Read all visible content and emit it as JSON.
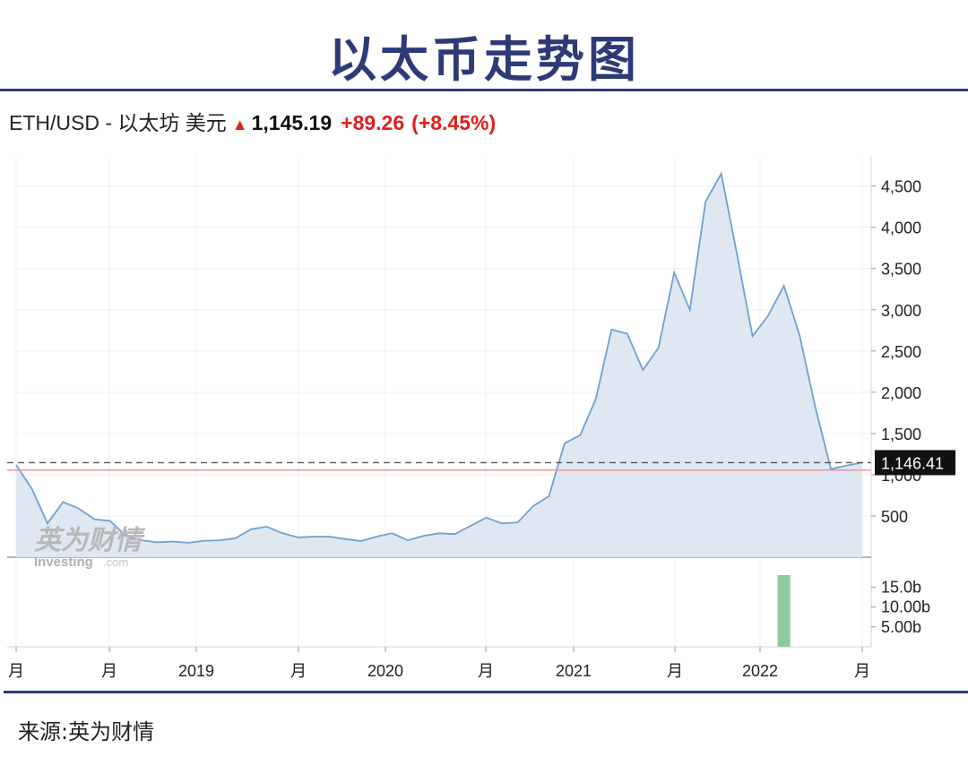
{
  "title": "以太币走势图",
  "quote": {
    "pair": "ETH/USD - 以太坊 美元",
    "arrow": "▲",
    "price": "1,145.19",
    "change": "+89.26",
    "change_pct": "(+8.45%)"
  },
  "source": "来源:英为财情",
  "watermark": {
    "cn": "英为财情",
    "en": "Investing",
    "en_suffix": ".com"
  },
  "colors": {
    "title": "#2e3a78",
    "line": "#6fa0d0",
    "area": "#dfe8f2",
    "ref_line": "#f08080",
    "volume": "#8ccb9b",
    "up": "#e0201b"
  },
  "chart_data": {
    "type": "area",
    "x_tick_labels": [
      "月",
      "月",
      "2019",
      "月",
      "2020",
      "月",
      "2021",
      "月",
      "2022",
      "月"
    ],
    "y_ticks": [
      500,
      1000,
      1500,
      2000,
      2500,
      3000,
      3500,
      4000,
      4500
    ],
    "y_tick_labels": [
      "500",
      "1,000",
      "1,500",
      "2,000",
      "2,500",
      "3,000",
      "3,500",
      "4,000",
      "4,500"
    ],
    "ylim": [
      0,
      4800
    ],
    "last_value_label": "1,146.41",
    "last_value": 1146.41,
    "reference_value": 1056,
    "series": [
      {
        "values": [
          1120,
          830,
          410,
          670,
          590,
          460,
          440,
          260,
          205,
          180,
          190,
          175,
          200,
          205,
          230,
          340,
          370,
          290,
          240,
          250,
          250,
          220,
          195,
          250,
          290,
          205,
          260,
          290,
          280,
          380,
          480,
          410,
          420,
          620,
          740,
          1380,
          1480,
          1920,
          2760,
          2710,
          2270,
          2540,
          3450,
          3000,
          4310,
          4650,
          3680,
          2680,
          2930,
          3290,
          2690,
          1820,
          1070,
          1110,
          1146.41
        ]
      }
    ],
    "volume": {
      "tick_labels": [
        "15.0b",
        "10.00b",
        "5.00b"
      ],
      "ticks": [
        15,
        10,
        5
      ],
      "ylim": [
        0,
        18
      ],
      "bar_index": 49,
      "bar_value": 18
    }
  }
}
